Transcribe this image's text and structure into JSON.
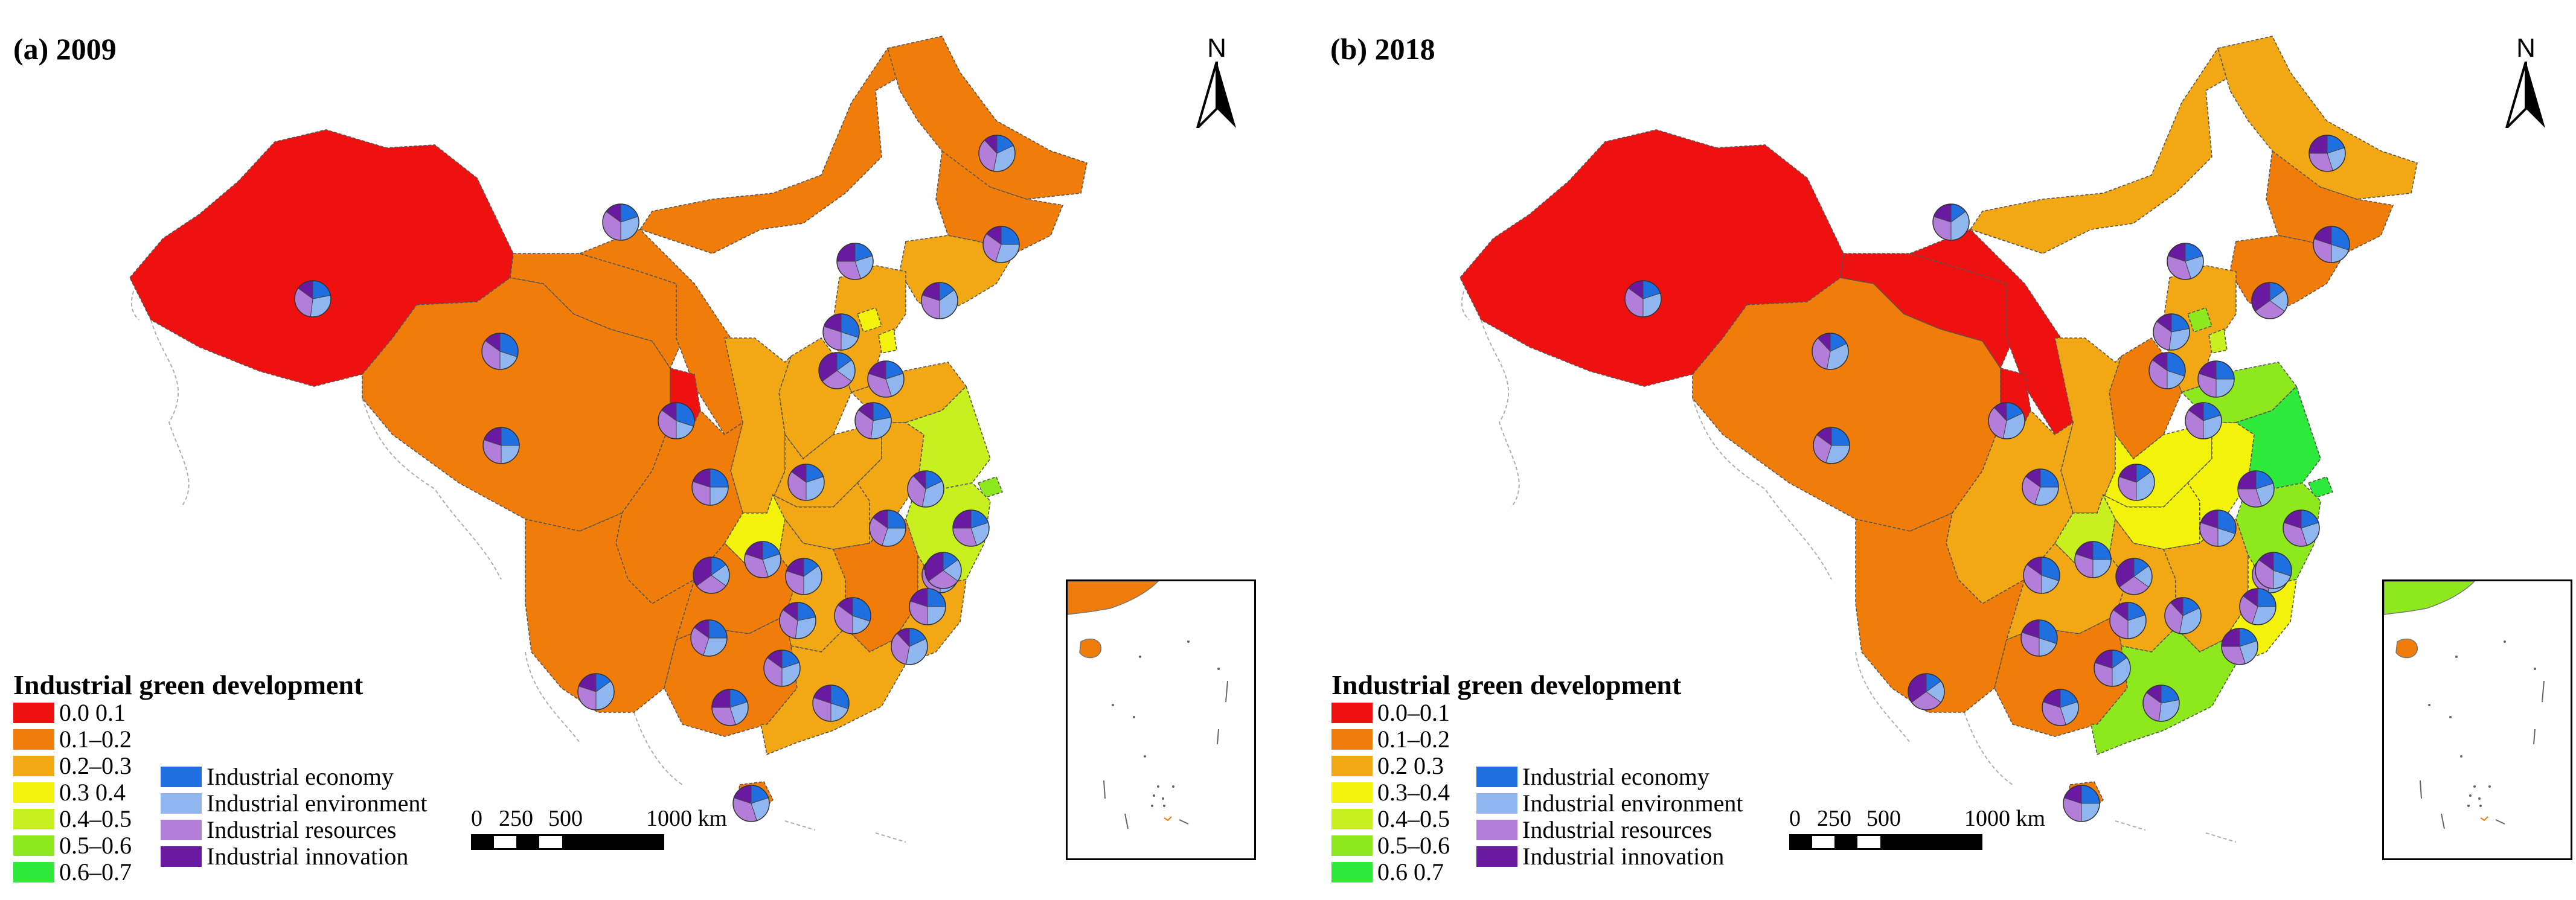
{
  "panels": [
    {
      "id": "a",
      "title": "(a) 2009",
      "scheme": "2009"
    },
    {
      "id": "b",
      "title": "(b) 2018",
      "scheme": "2018"
    }
  ],
  "north_label": "N",
  "legend": {
    "title": "Industrial green development",
    "classes_a": [
      "0.0 0.1",
      "0.1–0.2",
      "0.2–0.3",
      "0.3 0.4",
      "0.4–0.5",
      "0.5–0.6",
      "0.6–0.7"
    ],
    "classes_b": [
      "0.0–0.1",
      "0.1–0.2",
      "0.2 0.3",
      "0.3–0.4",
      "0.4–0.5",
      "0.5–0.6",
      "0.6 0.7"
    ],
    "class_colors": [
      "#ef1010",
      "#f07d0a",
      "#f2a814",
      "#f2f20a",
      "#c8f01e",
      "#8ee81e",
      "#2ee83a"
    ],
    "pie_components": [
      "Industrial economy",
      "Industrial environment",
      "Industrial resources",
      "Industrial innovation"
    ],
    "pie_colors": [
      "#1f6fe0",
      "#8fb6ef",
      "#b27ed9",
      "#6a1aa0"
    ]
  },
  "scale_bar": {
    "labels": [
      "0",
      "250",
      "500",
      "1000 km"
    ]
  }
}
